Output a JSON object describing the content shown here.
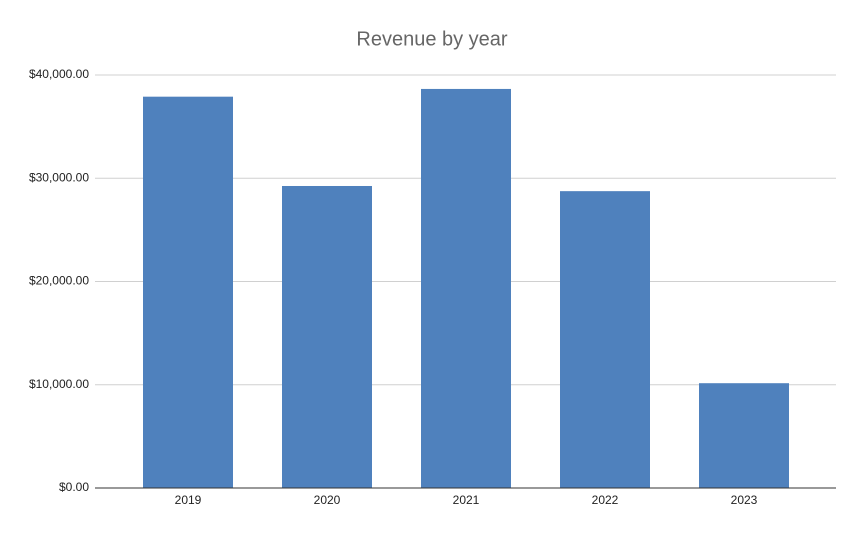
{
  "chart_data": {
    "type": "bar",
    "title": "Revenue by year",
    "categories": [
      "2019",
      "2020",
      "2021",
      "2022",
      "2023"
    ],
    "values": [
      37900,
      29250,
      38650,
      28750,
      10150
    ],
    "color": "#4f81bd",
    "ylim": [
      0,
      40000
    ],
    "yticks": [
      {
        "value": 0,
        "label": "$0.00"
      },
      {
        "value": 10000,
        "label": "$10,000.00"
      },
      {
        "value": 20000,
        "label": "$20,000.00"
      },
      {
        "value": 30000,
        "label": "$30,000.00"
      },
      {
        "value": 40000,
        "label": "$40,000.00"
      }
    ],
    "grid": true
  }
}
